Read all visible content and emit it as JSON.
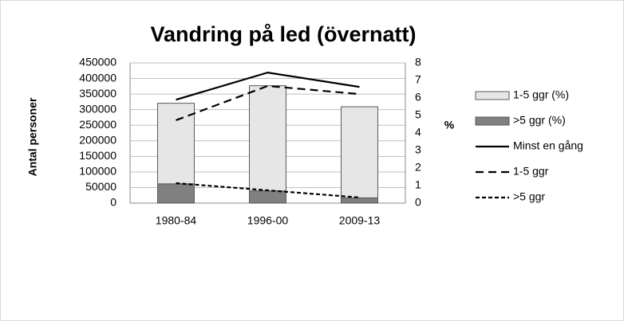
{
  "chart_data": {
    "type": "bar-line",
    "title": "Vandring på led (övernatt)",
    "ylabel": "Antal personer",
    "y2label": "%",
    "categories": [
      "1980-84",
      "1996-00",
      "2009-13"
    ],
    "series": [
      {
        "name": "1-5 ggr (%)",
        "type": "bar",
        "axis": "y2",
        "color": "#e6e6e6",
        "values": [
          4.6,
          6.0,
          5.2
        ]
      },
      {
        "name": ">5 ggr (%)",
        "type": "bar",
        "axis": "y2",
        "color": "#808080",
        "values": [
          1.1,
          0.7,
          0.3
        ]
      },
      {
        "name": "Minst en gång",
        "type": "line",
        "color": "#000000",
        "linestyle": "solid",
        "values": [
          332000,
          419000,
          373000
        ]
      },
      {
        "name": "1-5 ggr",
        "type": "line",
        "color": "#000000",
        "linestyle": "dashed",
        "values": [
          266000,
          376000,
          350000
        ]
      },
      {
        "name": ">5 ggr",
        "type": "line",
        "color": "#000000",
        "linestyle": "dotted",
        "values": [
          64000,
          41000,
          18000
        ]
      }
    ],
    "stacked": true,
    "ylim": [
      0,
      450000
    ],
    "yticks": [
      0,
      50000,
      100000,
      150000,
      200000,
      250000,
      300000,
      350000,
      400000,
      450000
    ],
    "y2lim": [
      0,
      8
    ],
    "y2ticks": [
      0,
      1,
      2,
      3,
      4,
      5,
      6,
      7,
      8
    ],
    "grid": true,
    "legend": "right"
  }
}
